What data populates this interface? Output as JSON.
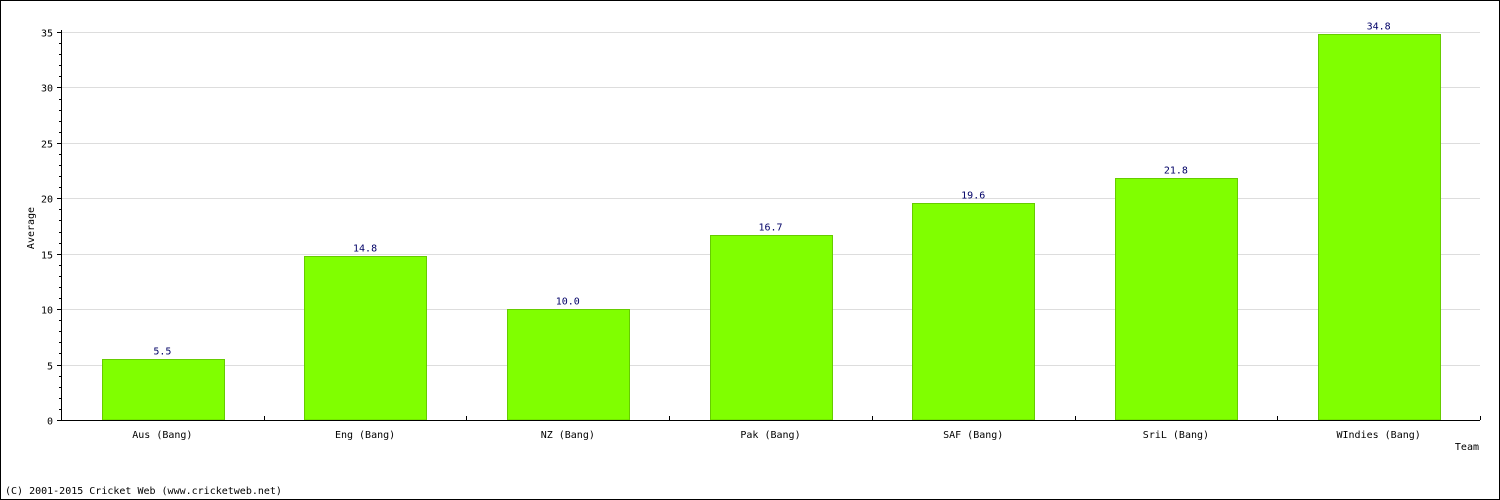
{
  "chart_data": {
    "type": "bar",
    "title": "",
    "xlabel": "Team",
    "ylabel": "Average",
    "categories": [
      "Aus (Bang)",
      "Eng (Bang)",
      "NZ (Bang)",
      "Pak (Bang)",
      "SAF (Bang)",
      "SriL (Bang)",
      "WIndies (Bang)"
    ],
    "values": [
      5.5,
      14.8,
      10.0,
      16.7,
      19.6,
      21.8,
      34.8
    ],
    "value_labels": [
      "5.5",
      "14.8",
      "10.0",
      "16.7",
      "19.6",
      "21.8",
      "34.8"
    ],
    "ylim": [
      0,
      35
    ],
    "yticks": [
      0,
      5,
      10,
      15,
      20,
      25,
      30,
      35
    ],
    "grid": true,
    "bar_color": "#80ff00",
    "bar_edge_color": "#66cc00",
    "grid_color": "#dddddd"
  },
  "footer": {
    "copyright": "(C) 2001-2015 Cricket Web (www.cricketweb.net)"
  }
}
